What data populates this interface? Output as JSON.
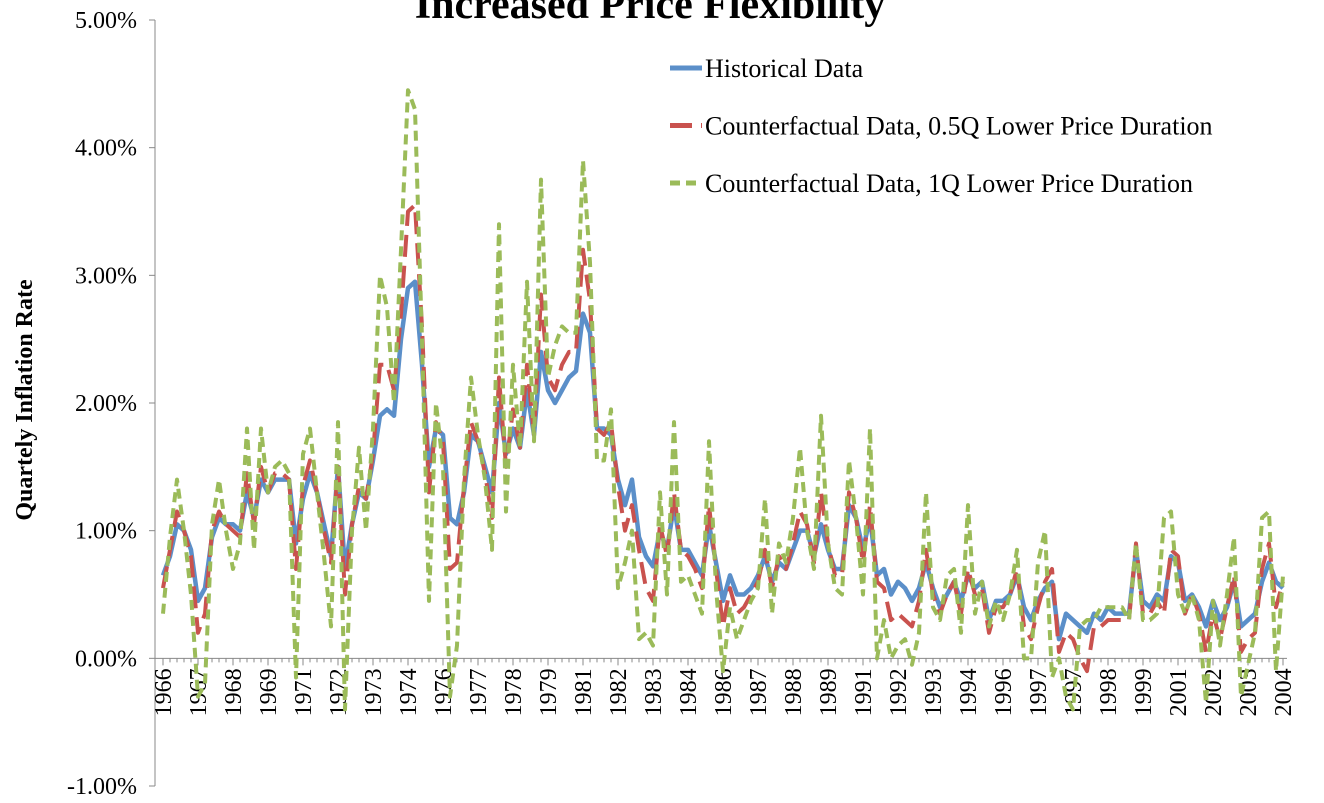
{
  "chart_data": {
    "type": "line",
    "title": "Increased Price Flexibility",
    "y_label": "Quartely Inflation Rate",
    "ylim": [
      -1,
      5
    ],
    "yticks": [
      {
        "value": -1,
        "label": "-1.00%"
      },
      {
        "value": 0,
        "label": "0.00%"
      },
      {
        "value": 1,
        "label": "1.00%"
      },
      {
        "value": 2,
        "label": "2.00%"
      },
      {
        "value": 3,
        "label": "3.00%"
      },
      {
        "value": 4,
        "label": "4.00%"
      },
      {
        "value": 5,
        "label": "5.00%"
      }
    ],
    "legend": "top-right",
    "categories": [
      "1966",
      null,
      null,
      null,
      null,
      "1967",
      null,
      null,
      null,
      null,
      "1968",
      null,
      null,
      null,
      null,
      "1969",
      null,
      null,
      null,
      null,
      "1971",
      null,
      null,
      null,
      null,
      "1972",
      null,
      null,
      null,
      null,
      "1973",
      null,
      null,
      null,
      null,
      "1974",
      null,
      null,
      null,
      null,
      "1976",
      null,
      null,
      null,
      null,
      "1977",
      null,
      null,
      null,
      null,
      "1978",
      null,
      null,
      null,
      null,
      "1979",
      null,
      null,
      null,
      null,
      "1981",
      null,
      null,
      null,
      null,
      "1982",
      null,
      null,
      null,
      null,
      "1983",
      null,
      null,
      null,
      null,
      "1984",
      null,
      null,
      null,
      null,
      "1986",
      null,
      null,
      null,
      null,
      "1987",
      null,
      null,
      null,
      null,
      "1988",
      null,
      null,
      null,
      null,
      "1989",
      null,
      null,
      null,
      null,
      "1991",
      null,
      null,
      null,
      null,
      "1992",
      null,
      null,
      null,
      null,
      "1993",
      null,
      null,
      null,
      null,
      "1994",
      null,
      null,
      null,
      null,
      "1996",
      null,
      null,
      null,
      null,
      "1997",
      null,
      null,
      null,
      null,
      "1997",
      null,
      null,
      null,
      null,
      "1998",
      null,
      null,
      null,
      null,
      "1999",
      null,
      null,
      null,
      null,
      "2001",
      null,
      null,
      null,
      null,
      "2002",
      null,
      null,
      null,
      null,
      "2003",
      null,
      null,
      null,
      null,
      "2004"
    ],
    "series": [
      {
        "name": "Historical Data",
        "color": "#5b8fc9",
        "dash": "solid",
        "values": [
          0.65,
          0.8,
          1.05,
          1.0,
          0.85,
          0.45,
          0.55,
          0.95,
          1.1,
          1.05,
          1.05,
          1.0,
          1.3,
          1.1,
          1.4,
          1.3,
          1.4,
          1.4,
          1.4,
          0.9,
          1.25,
          1.45,
          1.3,
          1.05,
          0.8,
          1.5,
          0.7,
          1.05,
          1.3,
          1.25,
          1.55,
          1.9,
          1.95,
          1.9,
          2.5,
          2.9,
          2.95,
          2.3,
          1.5,
          1.8,
          1.75,
          1.1,
          1.05,
          1.3,
          1.75,
          1.7,
          1.5,
          1.3,
          2.0,
          1.6,
          1.8,
          1.65,
          2.1,
          1.75,
          2.4,
          2.1,
          2.0,
          2.1,
          2.2,
          2.25,
          2.7,
          2.55,
          1.8,
          1.8,
          1.75,
          1.4,
          1.2,
          1.4,
          0.95,
          0.8,
          0.72,
          1.0,
          0.85,
          1.2,
          0.85,
          0.85,
          0.75,
          0.65,
          1.05,
          0.75,
          0.45,
          0.65,
          0.5,
          0.5,
          0.55,
          0.65,
          0.8,
          0.6,
          0.75,
          0.7,
          0.85,
          1.0,
          1.0,
          0.8,
          1.05,
          0.85,
          0.7,
          0.7,
          1.2,
          1.1,
          0.85,
          1.1,
          0.65,
          0.7,
          0.5,
          0.6,
          0.55,
          0.45,
          0.55,
          0.75,
          0.55,
          0.4,
          0.5,
          0.6,
          0.45,
          0.65,
          0.55,
          0.6,
          0.3,
          0.45,
          0.45,
          0.5,
          0.65,
          0.4,
          0.3,
          0.45,
          0.55,
          0.6,
          0.15,
          0.35,
          0.3,
          0.25,
          0.2,
          0.35,
          0.3,
          0.4,
          0.35,
          0.35,
          0.35,
          0.85,
          0.45,
          0.4,
          0.5,
          0.45,
          0.8,
          0.75,
          0.45,
          0.5,
          0.4,
          0.25,
          0.45,
          0.3,
          0.4,
          0.6,
          0.25,
          0.3,
          0.35,
          0.6,
          0.75,
          0.6,
          0.55
        ]
      },
      {
        "name": "Counterfactual Data, 0.5Q Lower Price Duration",
        "color": "#c9524e",
        "dash": "long",
        "values": [
          0.55,
          0.85,
          1.15,
          1.0,
          0.8,
          0.2,
          0.35,
          1.0,
          1.15,
          1.05,
          1.0,
          0.95,
          1.45,
          1.05,
          1.5,
          1.3,
          1.45,
          1.45,
          1.4,
          0.7,
          1.35,
          1.55,
          1.3,
          1.0,
          0.75,
          1.5,
          0.5,
          1.05,
          1.35,
          1.25,
          1.6,
          2.3,
          2.3,
          2.1,
          2.7,
          3.5,
          3.55,
          2.6,
          1.3,
          1.85,
          1.7,
          0.7,
          0.75,
          1.35,
          1.85,
          1.7,
          1.45,
          1.1,
          2.2,
          1.5,
          1.95,
          1.65,
          2.3,
          1.75,
          2.85,
          2.2,
          2.1,
          2.3,
          2.4,
          2.4,
          3.2,
          2.8,
          1.8,
          1.75,
          1.85,
          1.35,
          1.0,
          1.2,
          0.85,
          0.55,
          0.45,
          1.05,
          0.8,
          1.3,
          0.85,
          0.8,
          0.7,
          0.55,
          1.2,
          0.7,
          0.25,
          0.55,
          0.35,
          0.4,
          0.5,
          0.6,
          0.85,
          0.55,
          0.8,
          0.7,
          0.9,
          1.15,
          1.05,
          0.75,
          1.3,
          0.9,
          0.65,
          0.65,
          1.3,
          1.1,
          0.75,
          1.2,
          0.6,
          0.55,
          0.3,
          0.35,
          0.3,
          0.25,
          0.45,
          0.85,
          0.5,
          0.35,
          0.5,
          0.6,
          0.35,
          0.7,
          0.5,
          0.55,
          0.2,
          0.4,
          0.4,
          0.5,
          0.7,
          0.25,
          0.15,
          0.4,
          0.6,
          0.7,
          0.05,
          0.2,
          0.15,
          0.0,
          -0.1,
          0.25,
          0.25,
          0.3,
          0.3,
          0.3,
          0.3,
          0.9,
          0.35,
          0.35,
          0.45,
          0.35,
          0.85,
          0.8,
          0.35,
          0.5,
          0.35,
          0.05,
          0.35,
          0.15,
          0.4,
          0.65,
          0.05,
          0.15,
          0.2,
          0.7,
          0.9,
          0.4,
          0.6
        ]
      },
      {
        "name": "Counterfactual Data, 1Q Lower Price Duration",
        "color": "#9bbb59",
        "dash": "short",
        "values": [
          0.35,
          0.95,
          1.4,
          1.0,
          0.5,
          -0.3,
          -0.2,
          1.05,
          1.4,
          1.0,
          0.7,
          0.9,
          1.8,
          0.85,
          1.8,
          1.3,
          1.5,
          1.55,
          1.45,
          -0.15,
          1.6,
          1.8,
          1.3,
          0.8,
          0.25,
          1.85,
          -0.4,
          1.0,
          1.65,
          1.0,
          1.8,
          3.0,
          2.75,
          2.0,
          3.2,
          4.45,
          4.3,
          2.5,
          0.45,
          2.0,
          1.5,
          -0.3,
          0.1,
          1.4,
          2.2,
          1.75,
          1.4,
          0.85,
          3.4,
          1.15,
          2.3,
          1.65,
          2.95,
          1.7,
          3.75,
          2.2,
          2.45,
          2.6,
          2.55,
          2.55,
          3.9,
          3.1,
          1.55,
          1.55,
          1.95,
          0.55,
          0.75,
          1.0,
          0.15,
          0.2,
          0.1,
          1.3,
          0.5,
          1.85,
          0.6,
          0.65,
          0.5,
          0.35,
          1.7,
          0.55,
          -0.1,
          0.4,
          0.15,
          0.3,
          0.45,
          0.55,
          1.25,
          0.35,
          0.9,
          0.75,
          1.1,
          1.65,
          1.0,
          0.7,
          1.9,
          0.9,
          0.55,
          0.5,
          1.55,
          1.1,
          0.5,
          1.8,
          0.0,
          0.3,
          0.0,
          0.1,
          0.15,
          -0.05,
          0.2,
          1.3,
          0.4,
          0.3,
          0.65,
          0.7,
          0.2,
          1.2,
          0.35,
          0.6,
          0.25,
          0.45,
          0.3,
          0.5,
          0.85,
          0.0,
          0.0,
          0.75,
          1.0,
          -0.15,
          0.0,
          -0.3,
          -0.4,
          0.25,
          0.3,
          0.3,
          0.4,
          0.4,
          0.4,
          0.4,
          0.3,
          0.9,
          0.3,
          0.3,
          0.35,
          1.1,
          1.15,
          0.5,
          0.35,
          0.5,
          0.3,
          -0.35,
          0.45,
          0.1,
          0.5,
          0.95,
          -0.3,
          -0.05,
          0.2,
          1.1,
          1.15,
          -0.1,
          0.65
        ]
      }
    ]
  }
}
